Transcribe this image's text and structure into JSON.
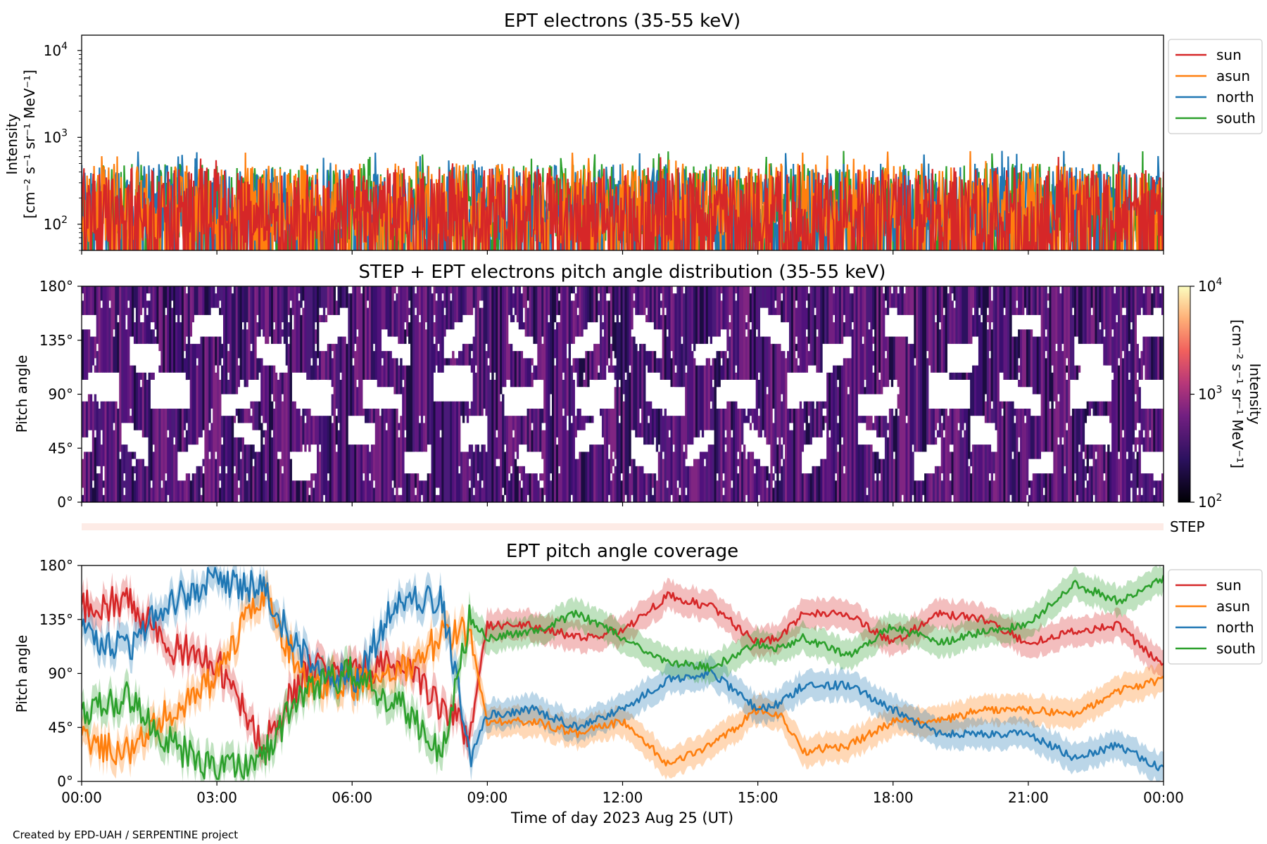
{
  "colors": {
    "sun": "#d62728",
    "asun": "#ff7f0e",
    "north": "#1f77b4",
    "south": "#2ca02c",
    "step_band": "#fdebe6"
  },
  "credit": "Created by EPD-UAH / SERPENTINE project",
  "chart_data": [
    {
      "type": "line",
      "title": "EPT electrons (35-55 keV)",
      "ylabel_line1": "Intensity",
      "ylabel_line2": "[cm⁻² s⁻¹ sr⁻¹ MeV⁻¹]",
      "yscale": "log",
      "ylim": [
        50,
        15000
      ],
      "yticks": [
        {
          "value": 100,
          "base": "10",
          "exp": "2"
        },
        {
          "value": 1000,
          "base": "10",
          "exp": "3"
        },
        {
          "value": 10000,
          "base": "10",
          "exp": "4"
        }
      ],
      "xlim": [
        0,
        24
      ],
      "legend_position": "outside-right",
      "series": [
        {
          "name": "sun",
          "typical_range": [
            60,
            450
          ]
        },
        {
          "name": "asun",
          "typical_range": [
            60,
            500
          ]
        },
        {
          "name": "north",
          "typical_range": [
            60,
            500
          ]
        },
        {
          "name": "south",
          "typical_range": [
            60,
            500
          ]
        }
      ],
      "notes_peak_max": 760
    },
    {
      "type": "heatmap",
      "title": "STEP + EPT electrons pitch angle distribution (35-55 keV)",
      "ylabel": "Pitch angle",
      "ylim": [
        0,
        180
      ],
      "yticks": [
        "0°",
        "45°",
        "90°",
        "135°",
        "180°"
      ],
      "xlim": [
        0,
        24
      ],
      "colorbar": {
        "scale": "log",
        "range": [
          100,
          10000
        ],
        "ticks": [
          {
            "base": "10",
            "exp": "2"
          },
          {
            "base": "10",
            "exp": "3"
          },
          {
            "base": "10",
            "exp": "4"
          }
        ],
        "label_line1": "Intensity",
        "label_line2": "[cm⁻² s⁻¹ sr⁻¹ MeV⁻¹]",
        "colormap": "plasma"
      },
      "step_label": "STEP"
    },
    {
      "type": "line",
      "title": "EPT pitch angle coverage",
      "ylabel": "Pitch angle",
      "ylim": [
        0,
        180
      ],
      "yticks": [
        "0°",
        "45°",
        "90°",
        "135°",
        "180°"
      ],
      "xlim": [
        0,
        24
      ],
      "xticks": [
        "00:00",
        "03:00",
        "06:00",
        "09:00",
        "12:00",
        "15:00",
        "18:00",
        "21:00",
        "00:00"
      ],
      "xlabel": "Time of day 2023 Aug 25 (UT)",
      "legend_position": "outside-right",
      "series": [
        {
          "name": "sun",
          "x": [
            0,
            1,
            2,
            3,
            4,
            5,
            6,
            7,
            8,
            8.6,
            9,
            10,
            11,
            12,
            13,
            14,
            15,
            15.5,
            16,
            17,
            18,
            19,
            20,
            21,
            22,
            23,
            24
          ],
          "y": [
            145,
            150,
            112,
            100,
            30,
            95,
            90,
            100,
            60,
            40,
            130,
            130,
            120,
            125,
            155,
            145,
            115,
            120,
            140,
            140,
            115,
            140,
            135,
            115,
            125,
            130,
            95
          ]
        },
        {
          "name": "asun",
          "x": [
            0,
            1,
            2,
            3,
            4,
            5,
            6,
            7,
            8,
            8.6,
            9,
            10,
            11,
            12,
            13,
            14,
            15,
            15.5,
            16,
            17,
            18,
            19,
            20,
            21,
            22,
            23,
            24
          ],
          "y": [
            35,
            25,
            60,
            85,
            160,
            80,
            80,
            90,
            120,
            125,
            50,
            50,
            40,
            50,
            15,
            30,
            60,
            55,
            25,
            30,
            50,
            50,
            60,
            60,
            55,
            75,
            85
          ]
        },
        {
          "name": "north",
          "x": [
            0,
            1,
            2,
            3,
            4,
            5,
            6,
            7,
            8,
            8.6,
            9,
            10,
            11,
            12,
            13,
            14,
            15,
            15.5,
            16,
            17,
            18,
            19,
            20,
            21,
            22,
            23,
            24
          ],
          "y": [
            125,
            110,
            150,
            170,
            160,
            100,
            80,
            150,
            150,
            20,
            55,
            60,
            45,
            60,
            85,
            90,
            60,
            65,
            80,
            80,
            60,
            40,
            40,
            40,
            20,
            30,
            10
          ]
        },
        {
          "name": "south",
          "x": [
            0,
            1,
            2,
            3,
            4,
            5,
            6,
            7,
            8,
            8.6,
            9,
            10,
            11,
            12,
            13,
            14,
            15,
            15.5,
            16,
            17,
            18,
            19,
            20,
            21,
            22,
            23,
            24
          ],
          "y": [
            55,
            70,
            30,
            10,
            20,
            80,
            90,
            65,
            25,
            135,
            120,
            125,
            140,
            120,
            100,
            95,
            115,
            110,
            120,
            105,
            130,
            115,
            125,
            130,
            165,
            150,
            170
          ]
        }
      ],
      "band_halfwidth": 12
    }
  ]
}
